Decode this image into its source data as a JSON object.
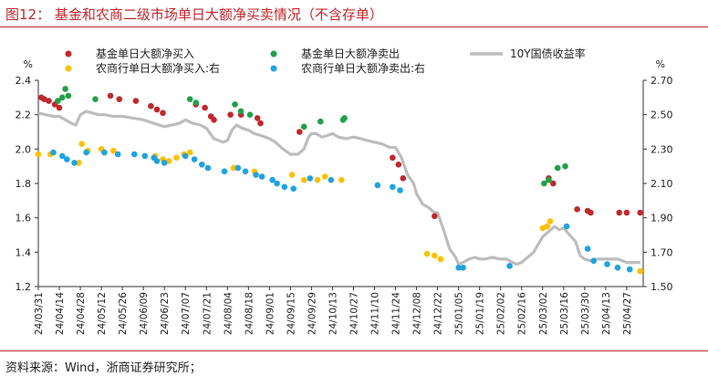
{
  "header": {
    "title": "图12：  基金和农商二级市场单日大额净买卖情况（不含存单）"
  },
  "footer": {
    "source": "资料来源：Wind，浙商证券研究所；"
  },
  "colors": {
    "line": "#bdbdbd",
    "fund_buy": "#c0282d",
    "fund_sell": "#21a04a",
    "rural_buy": "#ffc000",
    "rural_sell": "#1fa3e0",
    "title": "#c0282d"
  },
  "chart_data": {
    "type": "line",
    "left_axis": {
      "unit": "%",
      "min": 1.2,
      "max": 2.4,
      "ticks": [
        "1.2",
        "1.4",
        "1.6",
        "1.8",
        "2.0",
        "2.2",
        "2.4"
      ]
    },
    "right_axis": {
      "unit": "%",
      "min": 1.5,
      "max": 2.7,
      "ticks": [
        "1.50",
        "1.70",
        "1.90",
        "2.10",
        "2.30",
        "2.50",
        "2.70"
      ]
    },
    "x_tick_labels": [
      "24/03/31",
      "24/04/14",
      "24/04/28",
      "24/05/12",
      "24/05/26",
      "24/06/09",
      "24/06/23",
      "24/07/07",
      "24/07/21",
      "24/08/04",
      "24/08/18",
      "24/09/01",
      "24/09/15",
      "24/09/29",
      "24/10/13",
      "24/10/27",
      "24/11/10",
      "24/11/24",
      "24/12/08",
      "24/12/22",
      "25/01/05",
      "25/01/19",
      "25/02/02",
      "25/02/16",
      "25/03/02",
      "25/03/16",
      "25/03/30",
      "25/04/13",
      "25/04/27"
    ],
    "legend": [
      "基金单日大额净买入",
      "基金单日大额净卖出",
      "10Y国债收益率",
      "农商行单日大额净买入:右",
      "农商行单日大额净卖出:右"
    ],
    "series": [
      {
        "name": "10Y国债收益率",
        "axis": "right",
        "points": [
          [
            "24/03/31",
            2.51
          ],
          [
            "24/04/05",
            2.5
          ],
          [
            "24/04/10",
            2.49
          ],
          [
            "24/04/14",
            2.49
          ],
          [
            "24/04/18",
            2.47
          ],
          [
            "24/04/22",
            2.45
          ],
          [
            "24/04/25",
            2.44
          ],
          [
            "24/04/28",
            2.5
          ],
          [
            "24/05/02",
            2.52
          ],
          [
            "24/05/06",
            2.51
          ],
          [
            "24/05/10",
            2.5
          ],
          [
            "24/05/14",
            2.5
          ],
          [
            "24/05/20",
            2.49
          ],
          [
            "24/05/26",
            2.49
          ],
          [
            "24/06/02",
            2.48
          ],
          [
            "24/06/09",
            2.47
          ],
          [
            "24/06/16",
            2.45
          ],
          [
            "24/06/23",
            2.43
          ],
          [
            "24/06/28",
            2.44
          ],
          [
            "24/07/03",
            2.45
          ],
          [
            "24/07/07",
            2.47
          ],
          [
            "24/07/12",
            2.45
          ],
          [
            "24/07/17",
            2.44
          ],
          [
            "24/07/21",
            2.42
          ],
          [
            "24/07/26",
            2.36
          ],
          [
            "24/08/01",
            2.34
          ],
          [
            "24/08/04",
            2.35
          ],
          [
            "24/08/07",
            2.41
          ],
          [
            "24/08/10",
            2.44
          ],
          [
            "24/08/14",
            2.42
          ],
          [
            "24/08/18",
            2.41
          ],
          [
            "24/08/22",
            2.39
          ],
          [
            "24/08/26",
            2.38
          ],
          [
            "24/09/01",
            2.36
          ],
          [
            "24/09/05",
            2.34
          ],
          [
            "24/09/10",
            2.3
          ],
          [
            "24/09/15",
            2.27
          ],
          [
            "24/09/20",
            2.27
          ],
          [
            "24/09/24",
            2.3
          ],
          [
            "24/09/27",
            2.37
          ],
          [
            "24/09/29",
            2.39
          ],
          [
            "24/10/02",
            2.39
          ],
          [
            "24/10/06",
            2.37
          ],
          [
            "24/10/10",
            2.38
          ],
          [
            "24/10/13",
            2.39
          ],
          [
            "24/10/17",
            2.37
          ],
          [
            "24/10/22",
            2.36
          ],
          [
            "24/10/27",
            2.37
          ],
          [
            "24/11/01",
            2.36
          ],
          [
            "24/11/05",
            2.35
          ],
          [
            "24/11/10",
            2.34
          ],
          [
            "24/11/15",
            2.33
          ],
          [
            "24/11/20",
            2.31
          ],
          [
            "24/11/24",
            2.31
          ],
          [
            "24/11/28",
            2.25
          ],
          [
            "24/12/02",
            2.15
          ],
          [
            "24/12/06",
            2.1
          ],
          [
            "24/12/08",
            2.04
          ],
          [
            "24/12/12",
            1.98
          ],
          [
            "24/12/16",
            1.96
          ],
          [
            "24/12/20",
            1.93
          ],
          [
            "24/12/22",
            1.93
          ],
          [
            "24/12/26",
            1.83
          ],
          [
            "24/12/30",
            1.72
          ],
          [
            "25/01/03",
            1.67
          ],
          [
            "25/01/05",
            1.63
          ],
          [
            "25/01/08",
            1.64
          ],
          [
            "25/01/12",
            1.66
          ],
          [
            "25/01/16",
            1.67
          ],
          [
            "25/01/19",
            1.66
          ],
          [
            "25/01/23",
            1.66
          ],
          [
            "25/01/27",
            1.67
          ],
          [
            "25/02/02",
            1.66
          ],
          [
            "25/02/06",
            1.66
          ],
          [
            "25/02/10",
            1.64
          ],
          [
            "25/02/13",
            1.63
          ],
          [
            "25/02/16",
            1.64
          ],
          [
            "25/02/20",
            1.67
          ],
          [
            "25/02/24",
            1.7
          ],
          [
            "25/02/28",
            1.76
          ],
          [
            "25/03/02",
            1.79
          ],
          [
            "25/03/06",
            1.82
          ],
          [
            "25/03/10",
            1.85
          ],
          [
            "25/03/13",
            1.83
          ],
          [
            "25/03/16",
            1.84
          ],
          [
            "25/03/20",
            1.8
          ],
          [
            "25/03/24",
            1.76
          ],
          [
            "25/03/27",
            1.68
          ],
          [
            "25/03/30",
            1.66
          ],
          [
            "25/04/03",
            1.65
          ],
          [
            "25/04/07",
            1.66
          ],
          [
            "25/04/10",
            1.66
          ],
          [
            "25/04/13",
            1.66
          ],
          [
            "25/04/17",
            1.66
          ],
          [
            "25/04/21",
            1.66
          ],
          [
            "25/04/27",
            1.64
          ],
          [
            "25/05/02",
            1.64
          ],
          [
            "25/05/06",
            1.64
          ]
        ]
      },
      {
        "name": "基金单日大额净买入",
        "axis": "left",
        "points": [
          [
            "24/04/02",
            2.3
          ],
          [
            "24/04/04",
            2.29
          ],
          [
            "24/04/07",
            2.28
          ],
          [
            "24/04/11",
            2.26
          ],
          [
            "24/04/14",
            2.24
          ],
          [
            "24/05/18",
            2.31
          ],
          [
            "24/05/24",
            2.29
          ],
          [
            "24/06/04",
            2.28
          ],
          [
            "24/06/14",
            2.25
          ],
          [
            "24/06/18",
            2.23
          ],
          [
            "24/06/22",
            2.21
          ],
          [
            "24/07/14",
            2.26
          ],
          [
            "24/07/20",
            2.24
          ],
          [
            "24/07/24",
            2.19
          ],
          [
            "24/07/26",
            2.17
          ],
          [
            "24/08/06",
            2.2
          ],
          [
            "24/08/13",
            2.2
          ],
          [
            "24/08/24",
            2.18
          ],
          [
            "24/08/26",
            2.15
          ],
          [
            "24/09/21",
            2.1
          ],
          [
            "24/11/22",
            1.95
          ],
          [
            "24/11/26",
            1.91
          ],
          [
            "24/11/29",
            1.83
          ],
          [
            "24/12/20",
            1.61
          ],
          [
            "25/03/06",
            1.83
          ],
          [
            "25/03/09",
            1.8
          ],
          [
            "25/03/25",
            1.65
          ],
          [
            "25/04/01",
            1.64
          ],
          [
            "25/04/03",
            1.63
          ],
          [
            "25/04/22",
            1.63
          ],
          [
            "25/04/27",
            1.63
          ],
          [
            "25/05/06",
            1.63
          ]
        ]
      },
      {
        "name": "基金单日大额净卖出",
        "axis": "left",
        "points": [
          [
            "24/04/13",
            2.28
          ],
          [
            "24/04/16",
            2.3
          ],
          [
            "24/04/18",
            2.35
          ],
          [
            "24/04/20",
            2.31
          ],
          [
            "24/05/08",
            2.29
          ],
          [
            "24/07/10",
            2.29
          ],
          [
            "24/07/14",
            2.27
          ],
          [
            "24/08/09",
            2.26
          ],
          [
            "24/08/13",
            2.22
          ],
          [
            "24/08/19",
            2.2
          ],
          [
            "24/09/24",
            2.13
          ],
          [
            "24/10/05",
            2.16
          ],
          [
            "24/10/20",
            2.17
          ],
          [
            "24/10/21",
            2.18
          ],
          [
            "25/03/03",
            1.8
          ],
          [
            "25/03/06",
            1.82
          ],
          [
            "25/03/12",
            1.89
          ],
          [
            "25/03/17",
            1.9
          ]
        ]
      },
      {
        "name": "农商行单日大额净买入:右",
        "axis": "right",
        "points": [
          [
            "24/03/31",
            2.27
          ],
          [
            "24/04/08",
            2.27
          ],
          [
            "24/04/27",
            2.22
          ],
          [
            "24/04/29",
            2.33
          ],
          [
            "24/05/03",
            2.29
          ],
          [
            "24/05/12",
            2.3
          ],
          [
            "24/05/20",
            2.29
          ],
          [
            "24/06/17",
            2.26
          ],
          [
            "24/06/22",
            2.24
          ],
          [
            "24/06/26",
            2.23
          ],
          [
            "24/07/01",
            2.25
          ],
          [
            "24/07/06",
            2.27
          ],
          [
            "24/07/10",
            2.28
          ],
          [
            "24/08/08",
            2.19
          ],
          [
            "24/08/22",
            2.17
          ],
          [
            "24/09/16",
            2.15
          ],
          [
            "24/09/24",
            2.12
          ],
          [
            "24/10/03",
            2.12
          ],
          [
            "24/10/08",
            2.14
          ],
          [
            "24/10/19",
            2.12
          ],
          [
            "24/12/15",
            1.69
          ],
          [
            "24/12/20",
            1.68
          ],
          [
            "24/12/24",
            1.66
          ],
          [
            "25/03/02",
            1.84
          ],
          [
            "25/03/05",
            1.85
          ],
          [
            "25/03/07",
            1.88
          ],
          [
            "25/04/21",
            1.61
          ],
          [
            "25/05/06",
            1.59
          ]
        ]
      },
      {
        "name": "农商行单日大额净卖出:右",
        "axis": "right",
        "points": [
          [
            "24/04/10",
            2.28
          ],
          [
            "24/04/16",
            2.26
          ],
          [
            "24/04/19",
            2.24
          ],
          [
            "24/04/24",
            2.22
          ],
          [
            "24/05/02",
            2.28
          ],
          [
            "24/05/14",
            2.28
          ],
          [
            "24/05/23",
            2.27
          ],
          [
            "24/06/03",
            2.27
          ],
          [
            "24/06/10",
            2.26
          ],
          [
            "24/06/16",
            2.25
          ],
          [
            "24/06/18",
            2.23
          ],
          [
            "24/06/23",
            2.22
          ],
          [
            "24/07/07",
            2.26
          ],
          [
            "24/07/13",
            2.24
          ],
          [
            "24/07/18",
            2.21
          ],
          [
            "24/07/22",
            2.19
          ],
          [
            "24/08/02",
            2.17
          ],
          [
            "24/08/11",
            2.19
          ],
          [
            "24/08/16",
            2.17
          ],
          [
            "24/08/23",
            2.15
          ],
          [
            "24/08/27",
            2.14
          ],
          [
            "24/09/03",
            2.12
          ],
          [
            "24/09/06",
            2.1
          ],
          [
            "24/09/11",
            2.08
          ],
          [
            "24/09/17",
            2.07
          ],
          [
            "24/09/28",
            2.13
          ],
          [
            "24/10/12",
            2.12
          ],
          [
            "24/11/12",
            2.09
          ],
          [
            "24/11/22",
            2.08
          ],
          [
            "24/11/27",
            2.06
          ],
          [
            "25/01/05",
            1.61
          ],
          [
            "25/01/08",
            1.61
          ],
          [
            "25/02/08",
            1.62
          ],
          [
            "25/03/18",
            1.85
          ],
          [
            "25/04/01",
            1.72
          ],
          [
            "25/04/05",
            1.65
          ],
          [
            "25/04/14",
            1.63
          ],
          [
            "25/04/21",
            1.61
          ],
          [
            "25/04/29",
            1.6
          ]
        ]
      }
    ]
  }
}
